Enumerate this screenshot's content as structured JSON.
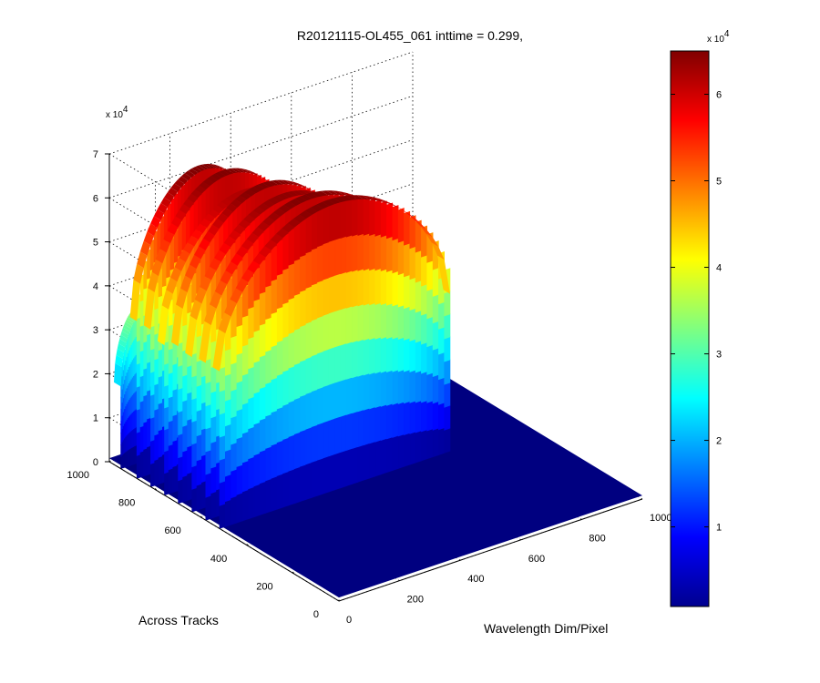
{
  "chart_data": {
    "type": "surface",
    "title": "R20121115-OL455_061 inttime = 0.299,",
    "xlabel": "Wavelength Dim/Pixel",
    "ylabel": "Across Tracks",
    "zlabel": "",
    "x_ticks": [
      "0",
      "200",
      "400",
      "600",
      "800",
      "1000"
    ],
    "y_ticks": [
      "0",
      "200",
      "400",
      "600",
      "800",
      "1000"
    ],
    "z_ticks": [
      "0",
      "1",
      "2",
      "3",
      "4",
      "5",
      "6",
      "7"
    ],
    "z_multiplier": "x 10",
    "z_multiplier_exp": "4",
    "xlim": [
      0,
      1000
    ],
    "ylim": [
      0,
      1000
    ],
    "zlim": [
      0,
      70000
    ],
    "grid": true,
    "colormap": "jet",
    "colorbar": {
      "ticks": [
        "1",
        "2",
        "3",
        "4",
        "5",
        "6"
      ],
      "multiplier": "x 10",
      "multiplier_exp": "4",
      "range": [
        800,
        65000
      ]
    },
    "bands": [
      {
        "across": 950,
        "x_start": 0,
        "x_end": 150,
        "peak": 34000
      },
      {
        "across": 880,
        "x_start": 0,
        "x_end": 450,
        "peak": 65000
      },
      {
        "across": 820,
        "x_start": 0,
        "x_end": 520,
        "peak": 65000
      },
      {
        "across": 760,
        "x_start": 0,
        "x_end": 560,
        "peak": 62000
      },
      {
        "across": 700,
        "x_start": 0,
        "x_end": 600,
        "peak": 65000
      },
      {
        "across": 640,
        "x_start": 0,
        "x_end": 640,
        "peak": 64000
      },
      {
        "across": 580,
        "x_start": 0,
        "x_end": 700,
        "peak": 65000
      },
      {
        "across": 520,
        "x_start": 0,
        "x_end": 760,
        "peak": 65000
      }
    ],
    "background_value": 800
  }
}
